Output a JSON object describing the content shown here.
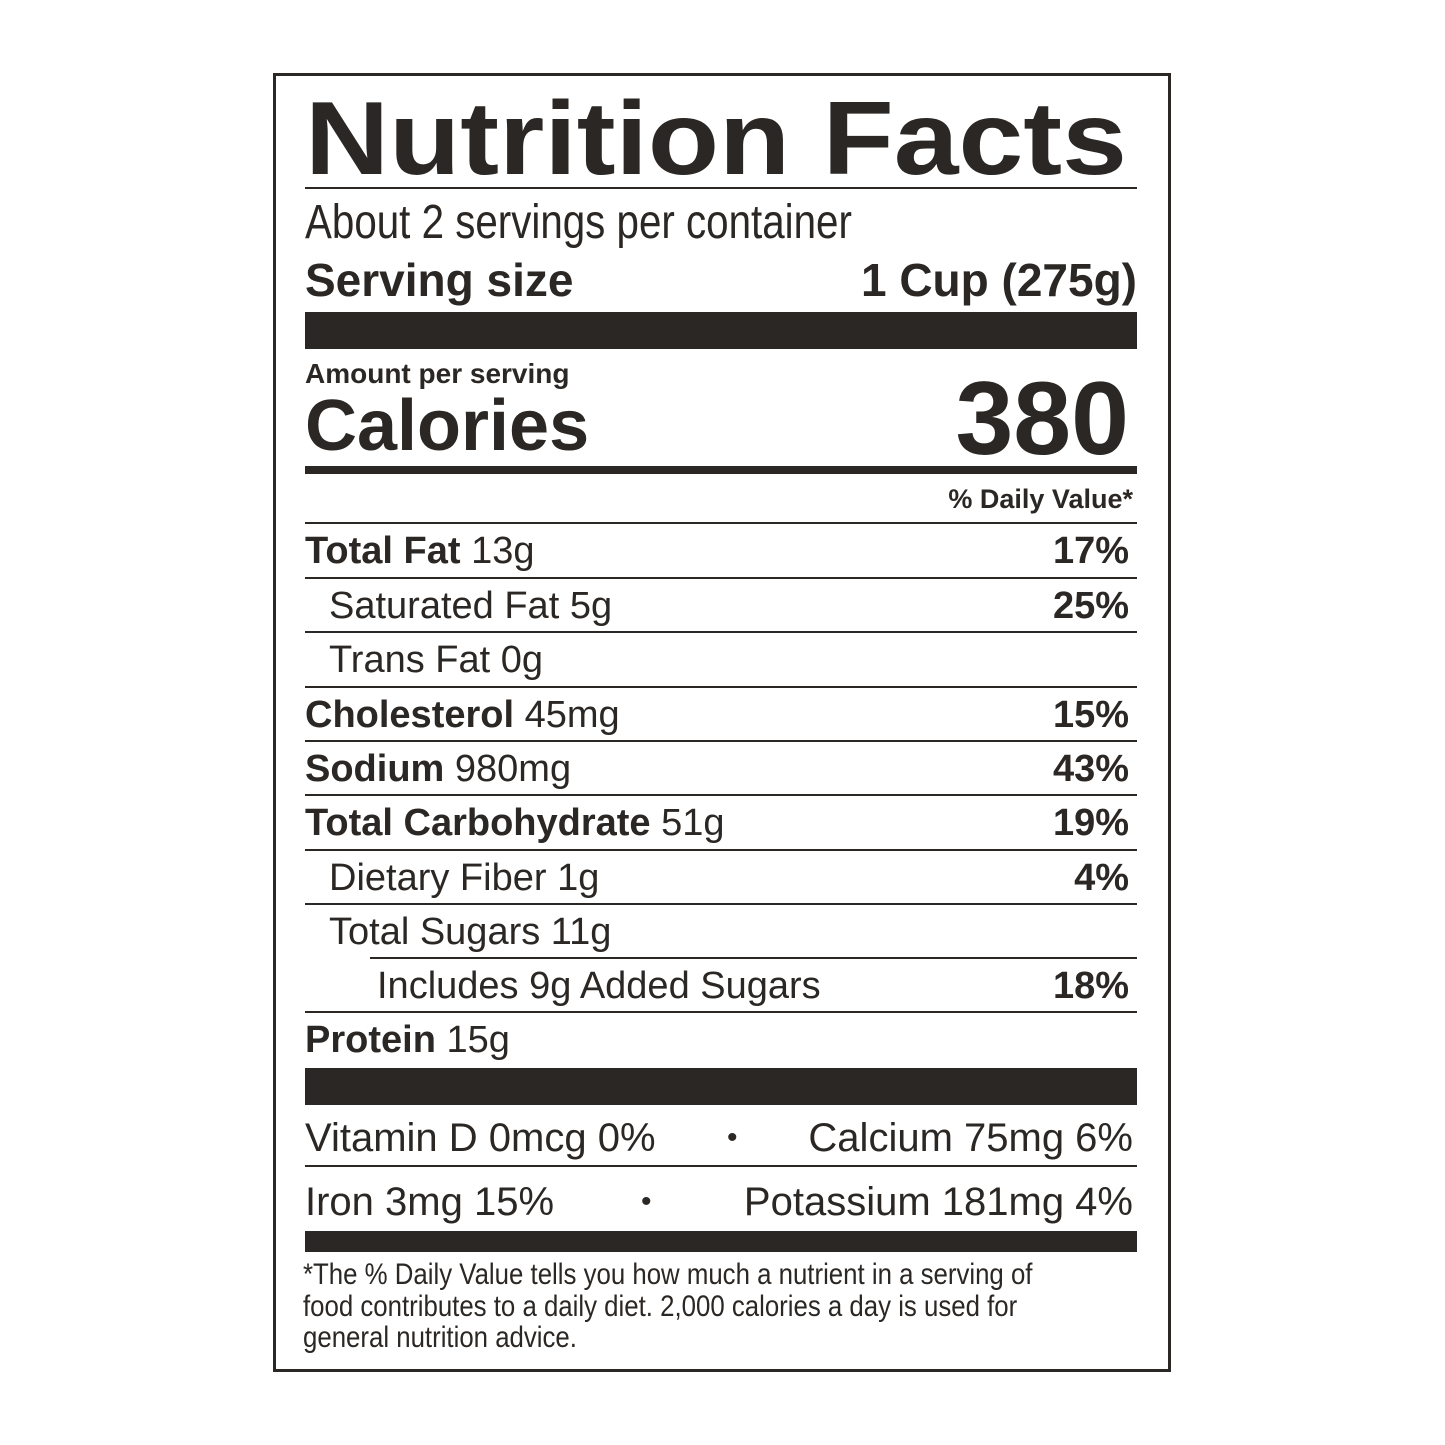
{
  "title": "Nutrition Facts",
  "servings_per_container": "About 2 servings per container",
  "serving_size": {
    "label": "Serving size",
    "value": "1 Cup (275g)"
  },
  "amount_per_serving": "Amount per serving",
  "calories": {
    "label": "Calories",
    "value": "380"
  },
  "daily_value_header": "% Daily Value*",
  "nutrients": [
    {
      "name": "Total Fat",
      "amount": "13g",
      "dv": "17%",
      "bold": true
    },
    {
      "name": "Saturated Fat",
      "amount": "5g",
      "dv": "25%",
      "bold": false
    },
    {
      "name": "Trans Fat",
      "amount": "0g",
      "dv": "",
      "bold": false
    },
    {
      "name": "Cholesterol",
      "amount": "45mg",
      "dv": "15%",
      "bold": true
    },
    {
      "name": "Sodium",
      "amount": "980mg",
      "dv": "43%",
      "bold": true
    },
    {
      "name": "Total Carbohydrate",
      "amount": "51g",
      "dv": "19%",
      "bold": true
    },
    {
      "name": "Dietary Fiber",
      "amount": "1g",
      "dv": "4%",
      "bold": false
    },
    {
      "name": "Total Sugars",
      "amount": "11g",
      "dv": "",
      "bold": false
    },
    {
      "name": "Includes 9g Added Sugars",
      "amount": "",
      "dv": "18%",
      "bold": false
    },
    {
      "name": "Protein",
      "amount": "15g",
      "dv": "",
      "bold": true
    }
  ],
  "micronutrients": {
    "row1": {
      "left": "Vitamin D 0mcg 0%",
      "right": "Calcium 75mg 6%"
    },
    "row2": {
      "left": "Iron 3mg 15%",
      "right": "Potassium 181mg 4%"
    },
    "separator": "•"
  },
  "footnote": [
    "*The % Daily Value tells you how much a nutrient in a serving of",
    "food contributes to a daily diet. 2,000 calories a day is used for",
    "general nutrition advice."
  ],
  "colors": {
    "ink": "#2b2724",
    "background": "#ffffff"
  }
}
